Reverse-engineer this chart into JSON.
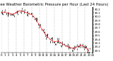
{
  "title": "Milwaukee Weather Barometric Pressure per Hour (Last 24 Hours)",
  "ylim": [
    29.05,
    30.25
  ],
  "xlim": [
    0,
    24
  ],
  "yticks": [
    29.1,
    29.2,
    29.3,
    29.4,
    29.5,
    29.6,
    29.7,
    29.8,
    29.9,
    30.0,
    30.1,
    30.2
  ],
  "xticks": [
    0,
    1,
    2,
    3,
    4,
    5,
    6,
    7,
    8,
    9,
    10,
    11,
    12,
    13,
    14,
    15,
    16,
    17,
    18,
    19,
    20,
    21,
    22,
    23,
    24
  ],
  "hours": [
    0,
    1,
    2,
    3,
    4,
    5,
    6,
    7,
    8,
    9,
    10,
    11,
    12,
    13,
    14,
    15,
    16,
    17,
    18,
    19,
    20,
    21,
    22,
    23
  ],
  "pressure": [
    30.1,
    30.13,
    30.09,
    30.06,
    30.12,
    30.16,
    30.13,
    30.09,
    30.06,
    29.95,
    29.78,
    29.62,
    29.48,
    29.38,
    29.33,
    29.36,
    29.28,
    29.22,
    29.18,
    29.16,
    29.2,
    29.25,
    29.18,
    29.1
  ],
  "line_color": "#ff0000",
  "bg_color": "#ffffff",
  "grid_color": "#888888",
  "title_fontsize": 3.8,
  "tick_fontsize": 2.8,
  "line_width": 0.6,
  "scatter_color": "#000000",
  "grid_interval": 2
}
